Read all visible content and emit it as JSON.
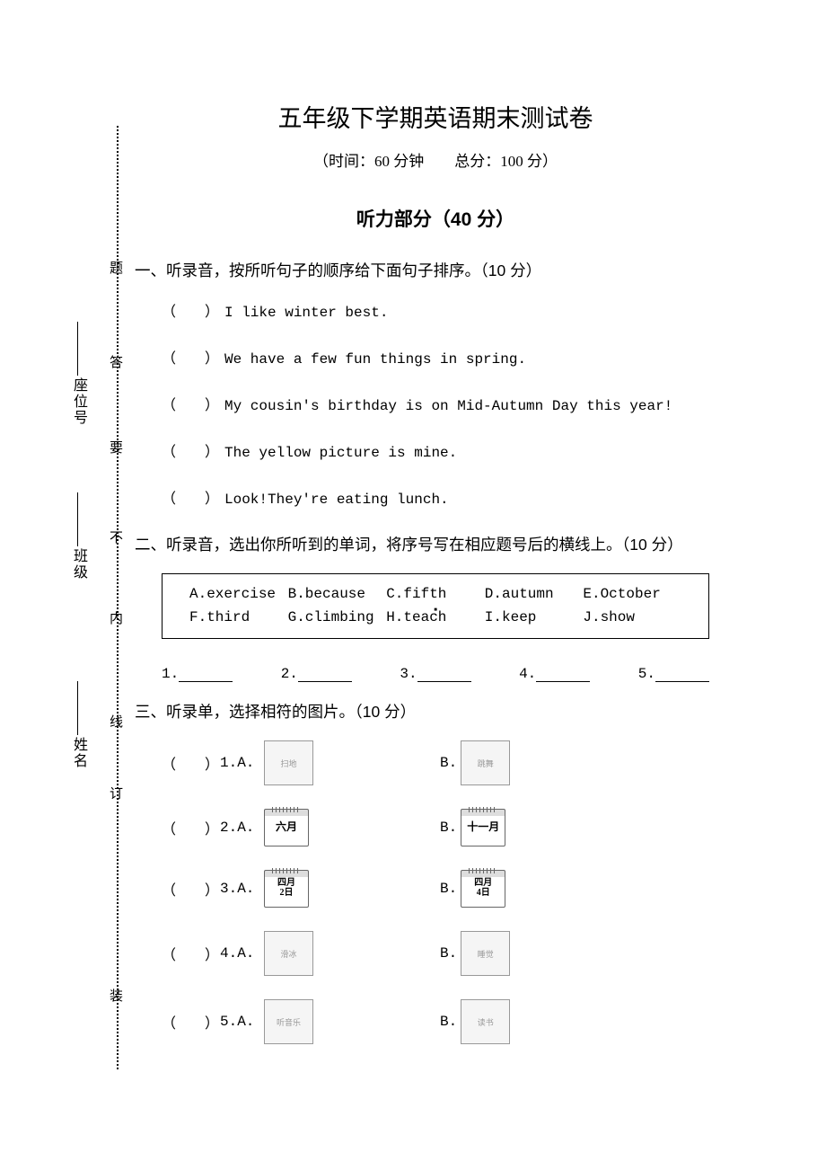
{
  "title": "五年级下学期英语期末测试卷",
  "subtitle": "（时间：60 分钟　　总分：100 分）",
  "part_header": "听力部分（40 分）",
  "binding": {
    "zhuang": "装",
    "ding": "订",
    "xian": "线",
    "nei": "内",
    "bu": "不",
    "yao": "要",
    "da": "答",
    "ti": "题",
    "xingming": "姓名",
    "banji": "班级",
    "zuowei": "座位号"
  },
  "section1": {
    "title": "一、听录音，按所听句子的顺序给下面句子排序。（10 分）",
    "items": [
      "I like winter best.",
      "We have a few fun things in spring.",
      "My cousin's birthday is on Mid-Autumn Day this year!",
      "The yellow picture is mine.",
      "Look!They're eating lunch."
    ]
  },
  "section2": {
    "title": "二、听录音，选出你所听到的单词，将序号写在相应题号后的横线上。（10 分）",
    "words": {
      "row1": [
        {
          "letter": "A.",
          "word": "exercise"
        },
        {
          "letter": "B.",
          "word": "because"
        },
        {
          "letter": "C.",
          "word": "fifth"
        },
        {
          "letter": "D.",
          "word": "autumn"
        },
        {
          "letter": "E.",
          "word": "October"
        }
      ],
      "row2": [
        {
          "letter": "F.",
          "word": "third"
        },
        {
          "letter": "G.",
          "word": "climbing"
        },
        {
          "letter": "H.",
          "word": "teach"
        },
        {
          "letter": "I.",
          "word": "keep"
        },
        {
          "letter": "J.",
          "word": "show"
        }
      ]
    },
    "blanks": [
      "1.",
      "2.",
      "3.",
      "4.",
      "5."
    ]
  },
  "section3": {
    "title": "三、听录单，选择相符的图片。（10 分）",
    "items": [
      {
        "num": "1.",
        "a_type": "img",
        "a_label": "扫地",
        "b_type": "img",
        "b_label": "跳舞"
      },
      {
        "num": "2.",
        "a_type": "cal",
        "a_label": "六月",
        "b_type": "cal",
        "b_label": "十一月"
      },
      {
        "num": "3.",
        "a_type": "cal2",
        "a_label1": "四月",
        "a_label2": "2日",
        "b_type": "cal2",
        "b_label1": "四月",
        "b_label2": "4日"
      },
      {
        "num": "4.",
        "a_type": "img",
        "a_label": "滑冰",
        "b_type": "img",
        "b_label": "睡觉"
      },
      {
        "num": "5.",
        "a_type": "img",
        "a_label": "听音乐",
        "b_type": "img",
        "b_label": "读书"
      }
    ]
  },
  "labels": {
    "paren": "（　　）",
    "option_a": "A.",
    "option_b": "B."
  }
}
